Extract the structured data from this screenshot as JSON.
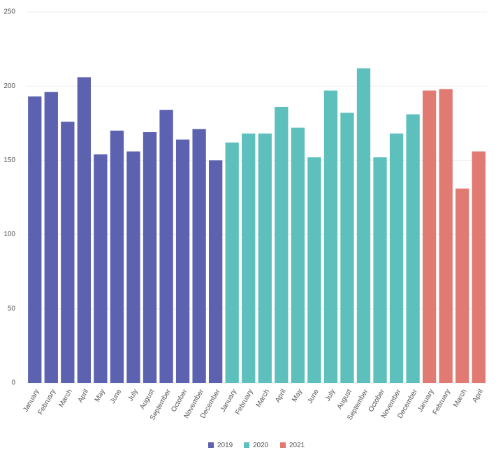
{
  "chart_data": {
    "type": "bar",
    "categories": [
      "January",
      "February",
      "March",
      "April",
      "May",
      "June",
      "July",
      "August",
      "September",
      "October",
      "November",
      "December",
      "January",
      "February",
      "March",
      "April",
      "May",
      "June",
      "July",
      "August",
      "September",
      "October",
      "November",
      "December",
      "January",
      "February",
      "March",
      "April"
    ],
    "series": [
      {
        "name": "2019",
        "color": "#5c62b0",
        "values": [
          193,
          196,
          176,
          206,
          154,
          170,
          156,
          169,
          184,
          164,
          171,
          150,
          null,
          null,
          null,
          null,
          null,
          null,
          null,
          null,
          null,
          null,
          null,
          null,
          null,
          null,
          null,
          null
        ]
      },
      {
        "name": "2020",
        "color": "#5ec0bc",
        "values": [
          null,
          null,
          null,
          null,
          null,
          null,
          null,
          null,
          null,
          null,
          null,
          null,
          162,
          168,
          168,
          186,
          172,
          152,
          197,
          182,
          212,
          152,
          168,
          181,
          null,
          null,
          null,
          null
        ]
      },
      {
        "name": "2021",
        "color": "#e07a72",
        "values": [
          null,
          null,
          null,
          null,
          null,
          null,
          null,
          null,
          null,
          null,
          null,
          null,
          null,
          null,
          null,
          null,
          null,
          null,
          null,
          null,
          null,
          null,
          null,
          null,
          197,
          198,
          131,
          156
        ]
      }
    ],
    "ylim": [
      0,
      250
    ],
    "yticks": [
      0,
      50,
      100,
      150,
      200,
      250
    ],
    "grid": true,
    "legend": "bottom"
  }
}
